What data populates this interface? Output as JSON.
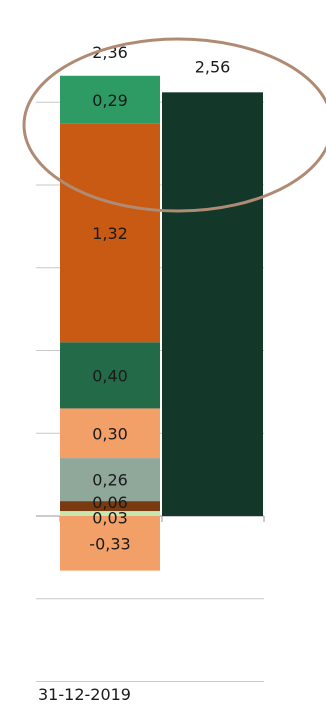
{
  "chart_data": {
    "type": "bar",
    "stacked": true,
    "categories": [
      "31-12-2019"
    ],
    "grid": true,
    "legend": "none",
    "series": [
      {
        "values": [
          0.03
        ],
        "color": "#c8e6b0"
      },
      {
        "values": [
          0.06
        ],
        "color": "#7a3a10"
      },
      {
        "values": [
          0.26
        ],
        "color": "#8fa89a"
      },
      {
        "values": [
          0.3
        ],
        "color": "#f2a068"
      },
      {
        "values": [
          0.4
        ],
        "color": "#236b48"
      },
      {
        "values": [
          1.32
        ],
        "color": "#c85a14"
      },
      {
        "values": [
          0.29
        ],
        "color": "#2e9a64"
      },
      {
        "values": [
          -0.33
        ],
        "color": "#f2a068"
      }
    ],
    "segment_labels": [
      "0,03",
      "0,06",
      "0,26",
      "0,30",
      "0,40",
      "1,32",
      "0,29",
      "-0,33"
    ],
    "stack_total_label": "2,36",
    "comparison_bar": {
      "value": 2.56,
      "label": "2,56",
      "color": "#13382a"
    },
    "annotation": {
      "shape": "ellipse",
      "color": "#b08b73"
    }
  }
}
